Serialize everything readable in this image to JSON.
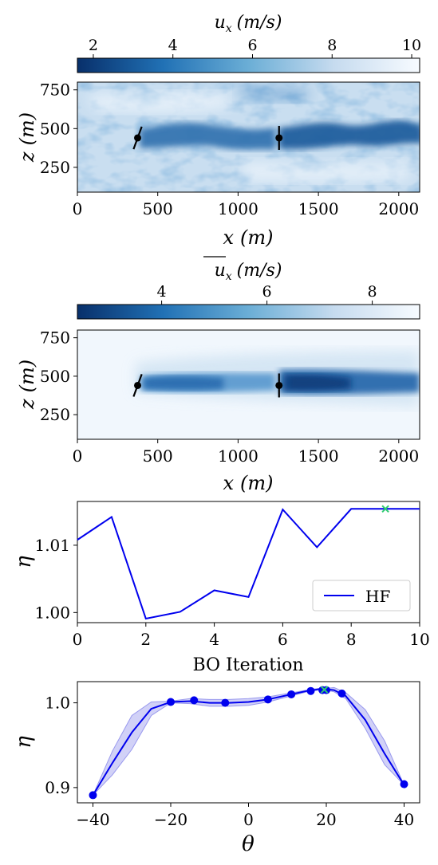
{
  "colors": {
    "dark_blue": "#08306b",
    "mid_blue": "#4a90c9",
    "light_blue": "#c6dbef",
    "white": "#f7fbff",
    "hf_line": "#0000ee",
    "opt_marker": "#2ecc71",
    "gp_band": "#9999ee",
    "turbine": "#000000"
  },
  "chart_data": [
    {
      "type": "heatmap",
      "field": "instantaneous",
      "colorbar": {
        "label": "u_x (m/s)",
        "label_symbol": "u",
        "label_subscript": "x",
        "label_units": "(m/s)",
        "ticks": [
          "2",
          "4",
          "6",
          "8",
          "10"
        ],
        "tick_values": [
          2,
          4,
          6,
          8,
          10
        ],
        "range": [
          1.6,
          10.2
        ],
        "colormap": "Blues_r"
      },
      "xlabel_symbol": "x",
      "xlabel_units": "(m)",
      "ylabel_symbol": "z",
      "ylabel_units": "(m)",
      "xlim": [
        0,
        2130
      ],
      "ylim": [
        90,
        800
      ],
      "xticks": [
        "0",
        "500",
        "1000",
        "1500",
        "2000"
      ],
      "xtick_values": [
        0,
        500,
        1000,
        1500,
        2000
      ],
      "yticks": [
        "250",
        "500",
        "750"
      ],
      "ytick_values": [
        250,
        500,
        750
      ],
      "turbines": [
        {
          "x": 375,
          "z": 440,
          "yaw_deg": 20
        },
        {
          "x": 1255,
          "z": 440,
          "yaw_deg": 0
        }
      ]
    },
    {
      "type": "heatmap",
      "field": "time-averaged",
      "colorbar": {
        "label": "mean u_x (m/s)",
        "label_symbol": "u",
        "label_subscript": "x",
        "label_units": "(m/s)",
        "overline": true,
        "ticks": [
          "4",
          "6",
          "8"
        ],
        "tick_values": [
          4,
          6,
          8
        ],
        "range": [
          2.4,
          8.9
        ],
        "colormap": "Blues_r"
      },
      "xlabel_symbol": "x",
      "xlabel_units": "(m)",
      "ylabel_symbol": "z",
      "ylabel_units": "(m)",
      "xlim": [
        0,
        2130
      ],
      "ylim": [
        90,
        800
      ],
      "xticks": [
        "0",
        "500",
        "1000",
        "1500",
        "2000"
      ],
      "xtick_values": [
        0,
        500,
        1000,
        1500,
        2000
      ],
      "yticks": [
        "250",
        "500",
        "750"
      ],
      "ytick_values": [
        250,
        500,
        750
      ],
      "turbines": [
        {
          "x": 375,
          "z": 440,
          "yaw_deg": 20
        },
        {
          "x": 1255,
          "z": 440,
          "yaw_deg": 0
        }
      ]
    },
    {
      "type": "line",
      "xlabel": "BO Iteration",
      "ylabel": "η",
      "xlim": [
        0,
        10
      ],
      "ylim": [
        0.9985,
        1.0165
      ],
      "xticks": [
        "0",
        "2",
        "4",
        "6",
        "8",
        "10"
      ],
      "xtick_values": [
        0,
        2,
        4,
        6,
        8,
        10
      ],
      "yticks": [
        "1.00",
        "1.01"
      ],
      "ytick_values": [
        1.0,
        1.01
      ],
      "legend": "lower-right",
      "series": [
        {
          "name": "HF",
          "x": [
            0,
            1,
            2,
            3,
            4,
            5,
            6,
            7,
            8,
            9,
            10
          ],
          "values": [
            1.0108,
            1.0142,
            0.9991,
            1.0001,
            1.0033,
            1.0023,
            1.0153,
            1.0097,
            1.0154,
            1.0154,
            1.0154
          ]
        }
      ],
      "optimum": {
        "x": 9,
        "y": 1.0154
      }
    },
    {
      "type": "line",
      "xlabel": "θ",
      "ylabel": "η",
      "xlim": [
        -44,
        44
      ],
      "ylim": [
        0.882,
        1.025
      ],
      "xticks": [
        "−40",
        "−20",
        "0",
        "20",
        "40"
      ],
      "xtick_values": [
        -40,
        -20,
        0,
        20,
        40
      ],
      "yticks": [
        "0.9",
        "1.0"
      ],
      "ytick_values": [
        0.9,
        1.0
      ],
      "gp_mean": {
        "x": [
          -40,
          -35,
          -30,
          -25,
          -20,
          -15,
          -10,
          -5,
          0,
          5,
          10,
          15,
          18,
          20,
          22,
          25,
          30,
          35,
          40
        ],
        "values": [
          0.891,
          0.929,
          0.965,
          0.993,
          1.001,
          1.002,
          1.0,
          1.0,
          1.001,
          1.004,
          1.009,
          1.014,
          1.016,
          1.016,
          1.015,
          1.008,
          0.98,
          0.94,
          0.903
        ]
      },
      "gp_band": {
        "x": [
          -40,
          -35,
          -30,
          -25,
          -20,
          -15,
          -10,
          -5,
          0,
          5,
          10,
          15,
          18,
          20,
          22,
          25,
          30,
          35,
          40
        ],
        "lower": [
          0.891,
          0.915,
          0.945,
          0.985,
          1.0,
          0.999,
          0.996,
          0.996,
          0.997,
          1.001,
          1.007,
          1.013,
          1.015,
          1.015,
          1.013,
          1.005,
          0.97,
          0.927,
          0.903
        ],
        "upper": [
          0.891,
          0.943,
          0.985,
          1.001,
          1.002,
          1.005,
          1.004,
          1.004,
          1.005,
          1.007,
          1.011,
          1.015,
          1.017,
          1.017,
          1.018,
          1.012,
          0.992,
          0.955,
          0.903
        ]
      },
      "samples": {
        "x": [
          -40,
          -20,
          -14,
          -6,
          5,
          11,
          16,
          19,
          20,
          24,
          40
        ],
        "values": [
          0.891,
          1.001,
          1.003,
          1.0,
          1.004,
          1.01,
          1.014,
          1.015,
          1.015,
          1.011,
          0.904
        ]
      },
      "optimum": {
        "x": 19.5,
        "y": 1.0155
      }
    }
  ]
}
